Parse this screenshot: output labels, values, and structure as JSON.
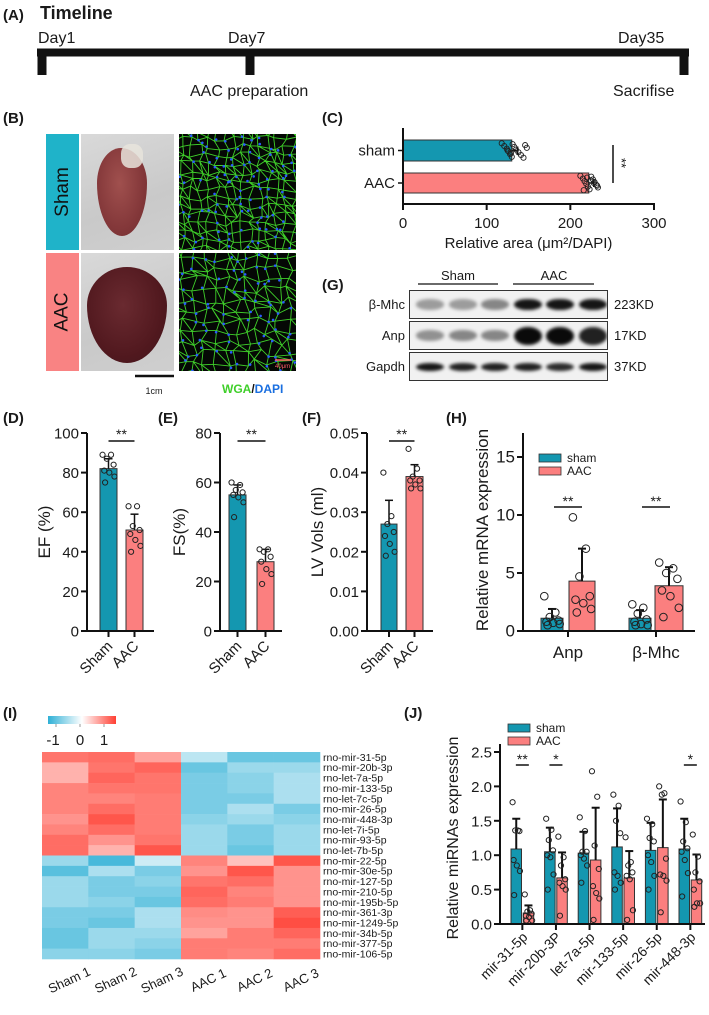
{
  "panels": {
    "A": "(A)",
    "B": "(B)",
    "C": "(C)",
    "D": "(D)",
    "E": "(E)",
    "F": "(F)",
    "G": "(G)",
    "H": "(H)",
    "I": "(I)",
    "J": "(J)"
  },
  "timeline": {
    "title": "Timeline",
    "points": [
      {
        "label": "Day1",
        "event": ""
      },
      {
        "label": "Day7",
        "event": "AAC preparation"
      },
      {
        "label": "Day35",
        "event": "Sacrifise"
      }
    ]
  },
  "histology": {
    "rows": [
      "Sham",
      "AAC"
    ],
    "scale_bar": "1cm",
    "micro_scale": "40μm",
    "stain_wga": "WGA",
    "stain_sep": "/",
    "stain_dapi": "DAPI",
    "colors": {
      "sham": "#1fb3c9",
      "aac": "#f98383",
      "wga": "#3fcf2a",
      "dapi": "#1a6fe0"
    }
  },
  "blot": {
    "groups": [
      "Sham",
      "AAC"
    ],
    "rows": [
      {
        "protein": "β-Mhc",
        "size": "223KD",
        "band_intensity": [
          0.35,
          0.35,
          0.45,
          0.95,
          0.95,
          0.95
        ]
      },
      {
        "protein": "Anp",
        "size": "17KD",
        "band_intensity": [
          0.4,
          0.45,
          0.45,
          1.0,
          1.0,
          0.9
        ]
      },
      {
        "protein": "Gapdh",
        "size": "37KD",
        "band_intensity": [
          0.95,
          0.9,
          0.9,
          0.9,
          0.85,
          0.95
        ]
      }
    ]
  },
  "chart_data": [
    {
      "id": "C",
      "type": "bar",
      "orientation": "horizontal",
      "categories": [
        "sham",
        "AAC"
      ],
      "values": [
        130,
        222
      ],
      "sd": [
        7,
        6
      ],
      "points": [
        [
          118,
          121,
          124,
          126,
          128,
          130,
          131,
          133,
          135,
          138,
          141,
          144,
          146,
          148,
          125,
          129
        ],
        [
          212,
          215,
          217,
          219,
          221,
          223,
          225,
          227,
          229,
          231,
          233,
          216,
          220,
          224,
          228,
          232
        ]
      ],
      "colors": [
        "#1497b0",
        "#fb7f7f"
      ],
      "xlim": [
        0,
        300
      ],
      "xticks": [
        "0",
        "100",
        "200",
        "300"
      ],
      "xlabel": "Relative area (μm²/DAPI)",
      "significance": "**"
    },
    {
      "id": "D",
      "type": "bar",
      "categories": [
        "Sham",
        "AAC"
      ],
      "values": [
        82,
        51
      ],
      "sd": [
        5,
        8
      ],
      "points": [
        [
          89,
          89,
          87,
          84,
          81,
          80,
          78,
          75
        ],
        [
          63,
          63,
          53,
          51,
          49,
          46,
          43,
          40
        ]
      ],
      "colors": [
        "#1497b0",
        "#fb7f7f"
      ],
      "ylim": [
        0,
        100
      ],
      "yticks": [
        "0",
        "20",
        "40",
        "60",
        "80",
        "100"
      ],
      "ylabel": "EF (%)",
      "significance": "**"
    },
    {
      "id": "E",
      "type": "bar",
      "categories": [
        "Sham",
        "AAC"
      ],
      "values": [
        55,
        28
      ],
      "sd": [
        4,
        5
      ],
      "points": [
        [
          60,
          59,
          57,
          56,
          55,
          54,
          52,
          46
        ],
        [
          33,
          33,
          32,
          30,
          28,
          25,
          23,
          19
        ]
      ],
      "colors": [
        "#1497b0",
        "#fb7f7f"
      ],
      "ylim": [
        0,
        80
      ],
      "yticks": [
        "0",
        "20",
        "40",
        "60",
        "80"
      ],
      "ylabel": "FS(%)",
      "significance": "**"
    },
    {
      "id": "F",
      "type": "bar",
      "categories": [
        "Sham",
        "AAC"
      ],
      "values": [
        0.027,
        0.039
      ],
      "sd": [
        0.006,
        0.003
      ],
      "points": [
        [
          0.04,
          0.029,
          0.027,
          0.025,
          0.024,
          0.022,
          0.02,
          0.019
        ],
        [
          0.046,
          0.041,
          0.039,
          0.038,
          0.038,
          0.037,
          0.036,
          0.036
        ]
      ],
      "colors": [
        "#1497b0",
        "#fb7f7f"
      ],
      "ylim": [
        0,
        0.05
      ],
      "yticks": [
        "0.00",
        "0.01",
        "0.02",
        "0.03",
        "0.04",
        "0.05"
      ],
      "ylabel": "LV Vols (ml)",
      "significance": "**"
    },
    {
      "id": "H",
      "type": "bar",
      "categories": [
        "Anp",
        "β-Mhc"
      ],
      "series": [
        {
          "name": "sham",
          "color": "#1497b0",
          "values": [
            1.1,
            1.1
          ],
          "sd": [
            0.8,
            0.7
          ],
          "points": [
            [
              3.0,
              1.6,
              1.2,
              0.9,
              0.8,
              0.7,
              0.6,
              0.5
            ],
            [
              2.3,
              2.0,
              1.5,
              1.0,
              0.8,
              0.6,
              0.5,
              0.5
            ]
          ]
        },
        {
          "name": "AAC",
          "color": "#fb7f7f",
          "values": [
            4.3,
            3.9
          ],
          "sd": [
            2.8,
            1.6
          ],
          "points": [
            [
              9.8,
              7.1,
              4.7,
              3.0,
              2.7,
              2.4,
              1.9,
              1.6
            ],
            [
              5.9,
              5.4,
              5.0,
              4.5,
              3.5,
              3.0,
              2.0,
              1.2
            ]
          ]
        }
      ],
      "ylim": [
        0,
        15
      ],
      "yticks": [
        "0",
        "5",
        "10",
        "15"
      ],
      "ylabel": "Relative mRNA expression",
      "legend": "top-left",
      "significance": [
        "**",
        "**"
      ]
    },
    {
      "id": "I",
      "type": "heatmap",
      "columns": [
        "Sham 1",
        "Sham 2",
        "Sham 3",
        "AAC 1",
        "AAC 2",
        "AAC 3"
      ],
      "rows": [
        "rno-mir-31-5p",
        "rno-mir-20b-3p",
        "rno-let-7a-5p",
        "rno-mir-133-5p",
        "rno-let-7c-5p",
        "rno-mir-26-5p",
        "rno-mir-448-3p",
        "rno-let-7i-5p",
        "rno-mir-93-5p",
        "rno-let-7b-5p",
        "rno-mir-22-5p",
        "rno-mir-30e-5p",
        "rno-mir-127-5p",
        "rno-mir-210-5p",
        "rno-mir-195b-5p",
        "rno-mir-361-3p",
        "rno-mir-1249-5p",
        "rno-mir-34b-5p",
        "rno-mir-377-5p",
        "rno-mir-106-5p"
      ],
      "values": [
        [
          0.9,
          0.95,
          0.6,
          -0.4,
          -0.9,
          -0.9
        ],
        [
          0.5,
          0.9,
          1.0,
          -0.9,
          -0.6,
          -0.6
        ],
        [
          0.5,
          1.0,
          0.9,
          -0.8,
          -0.7,
          -0.5
        ],
        [
          0.8,
          0.9,
          0.9,
          -0.8,
          -0.7,
          -0.5
        ],
        [
          0.8,
          0.8,
          0.85,
          -0.8,
          -0.8,
          -0.5
        ],
        [
          0.8,
          0.95,
          0.85,
          -0.8,
          -0.5,
          -0.8
        ],
        [
          0.7,
          1.1,
          0.85,
          -0.7,
          -0.6,
          -0.7
        ],
        [
          0.8,
          0.95,
          0.85,
          -0.6,
          -0.8,
          -0.6
        ],
        [
          0.95,
          0.7,
          0.9,
          -0.6,
          -0.8,
          -0.6
        ],
        [
          0.95,
          0.5,
          1.1,
          -0.6,
          -0.9,
          -0.6
        ],
        [
          -0.6,
          -1.1,
          -0.3,
          0.8,
          0.4,
          1.1
        ],
        [
          -1.0,
          -0.5,
          -0.8,
          0.7,
          1.1,
          0.7
        ],
        [
          -0.6,
          -0.8,
          -0.7,
          0.9,
          0.95,
          0.7
        ],
        [
          -0.6,
          -0.8,
          -0.8,
          1.0,
          0.8,
          0.7
        ],
        [
          -0.6,
          -0.7,
          -0.9,
          0.95,
          0.85,
          0.7
        ],
        [
          -0.8,
          -0.8,
          -0.5,
          0.75,
          0.7,
          1.05
        ],
        [
          -0.8,
          -0.9,
          -0.5,
          0.7,
          0.7,
          1.15
        ],
        [
          -0.9,
          -0.6,
          -0.6,
          0.6,
          0.85,
          1.0
        ],
        [
          -0.9,
          -0.6,
          -0.7,
          0.85,
          0.85,
          0.85
        ],
        [
          -0.7,
          -0.7,
          -0.8,
          0.85,
          0.8,
          0.95
        ]
      ],
      "colorbar_ticks": [
        "-1",
        "0",
        "1"
      ],
      "colors": {
        "low": "#2fb0d6",
        "mid": "#ffffff",
        "high": "#ff3f33"
      }
    },
    {
      "id": "J",
      "type": "bar",
      "categories": [
        "mir-31-5p",
        "mir-20b-3P",
        "let-7a-5p",
        "mir-133-5p",
        "mir-26-5p",
        "mir-448-3p"
      ],
      "series": [
        {
          "name": "sham",
          "color": "#1497b0",
          "values": [
            1.09,
            1.05,
            1.03,
            1.12,
            1.07,
            1.09
          ],
          "sd": [
            0.44,
            0.35,
            0.31,
            0.56,
            0.4,
            0.44
          ],
          "points": [
            [
              1.77,
              1.36,
              1.36,
              1.35,
              0.93,
              0.85,
              0.77,
              0.42
            ],
            [
              1.53,
              1.37,
              1.22,
              1.07,
              1.0,
              0.97,
              0.72,
              0.5
            ],
            [
              1.55,
              1.35,
              1.05,
              1.05,
              1.0,
              0.95,
              0.85,
              0.6
            ],
            [
              1.88,
              1.72,
              1.5,
              1.32,
              0.75,
              0.7,
              0.6,
              0.5
            ],
            [
              1.53,
              1.45,
              1.25,
              1.2,
              1.0,
              0.9,
              0.7,
              0.5
            ],
            [
              1.78,
              1.48,
              1.2,
              1.1,
              1.05,
              0.93,
              0.74,
              0.4
            ]
          ]
        },
        {
          "name": "AAC",
          "color": "#fb7f7f",
          "values": [
            0.16,
            0.67,
            0.93,
            0.67,
            1.11,
            0.64
          ],
          "sd": [
            0.11,
            0.37,
            0.76,
            0.39,
            0.7,
            0.37
          ],
          "points": [
            [
              0.43,
              0.2,
              0.18,
              0.15,
              0.12,
              0.1,
              0.05,
              0.05
            ],
            [
              1.27,
              0.97,
              0.85,
              0.65,
              0.6,
              0.55,
              0.5,
              0.12
            ],
            [
              2.22,
              1.85,
              1.14,
              0.8,
              0.55,
              0.45,
              0.37,
              0.06
            ],
            [
              1.26,
              0.9,
              0.85,
              0.75,
              0.7,
              0.65,
              0.2,
              0.06
            ],
            [
              2.0,
              1.9,
              1.88,
              0.95,
              0.72,
              0.7,
              0.63,
              0.17
            ],
            [
              1.3,
              0.98,
              0.75,
              0.62,
              0.5,
              0.3,
              0.3,
              0.25
            ]
          ]
        }
      ],
      "ylim": [
        0,
        2.5
      ],
      "yticks": [
        "0.0",
        "0.5",
        "1.0",
        "1.5",
        "2.0",
        "2.5"
      ],
      "ylabel": "Relative miRNAs expression",
      "legend": "top-left",
      "significance": [
        "**",
        "*",
        "",
        "",
        "",
        "*"
      ]
    }
  ]
}
